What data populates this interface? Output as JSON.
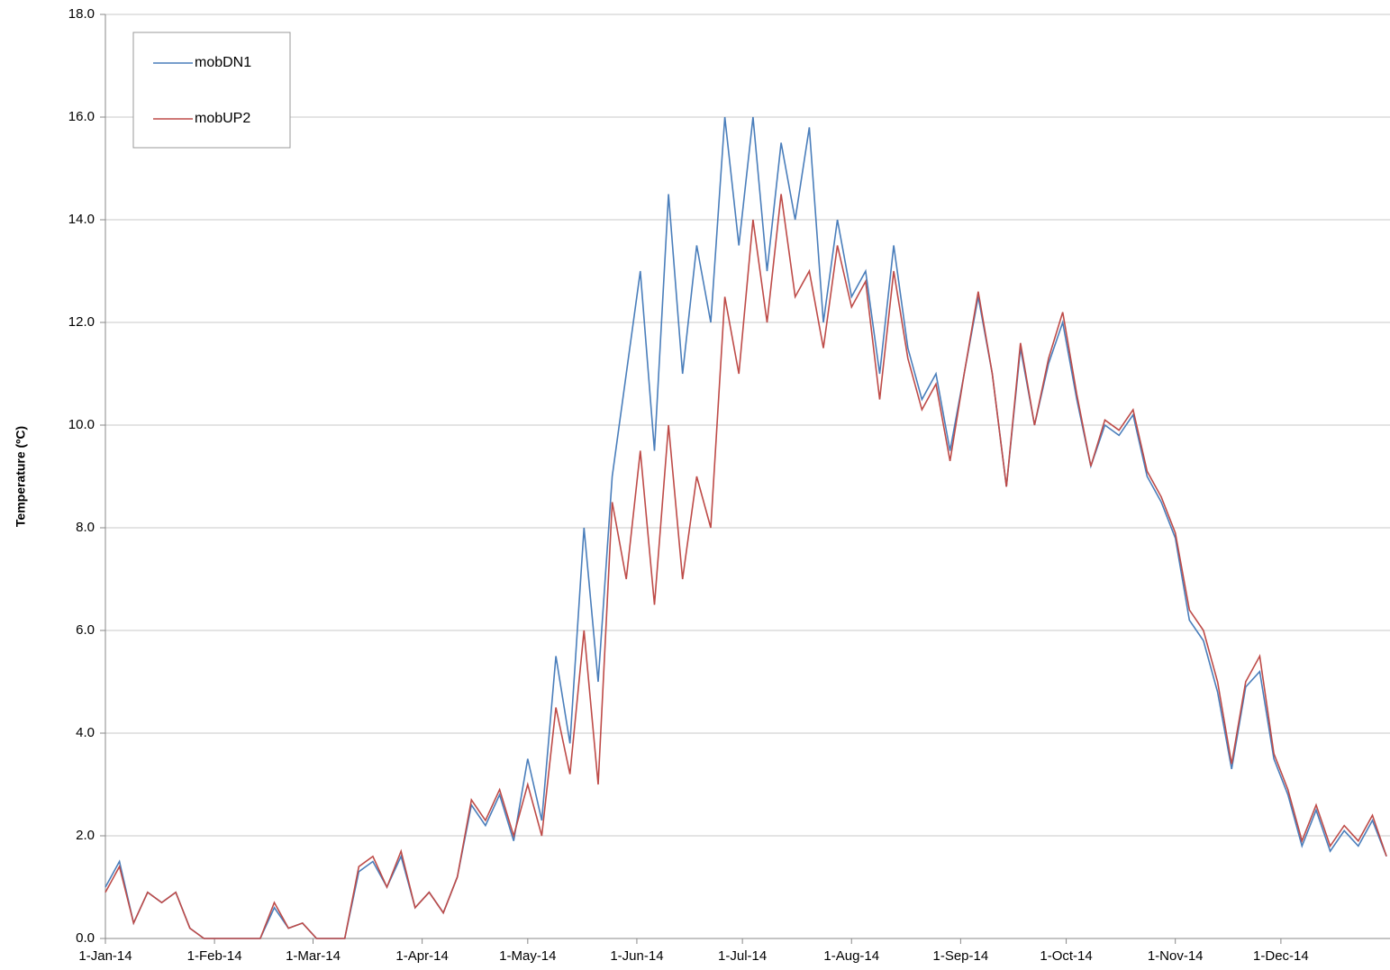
{
  "chart_data": {
    "type": "line",
    "y_label": "Temperature (ºC)",
    "x": [
      "2014-01-01",
      "2014-01-05",
      "2014-01-09",
      "2014-01-13",
      "2014-01-17",
      "2014-01-21",
      "2014-01-25",
      "2014-01-29",
      "2014-02-02",
      "2014-02-06",
      "2014-02-10",
      "2014-02-14",
      "2014-02-18",
      "2014-02-22",
      "2014-02-26",
      "2014-03-02",
      "2014-03-06",
      "2014-03-10",
      "2014-03-14",
      "2014-03-18",
      "2014-03-22",
      "2014-03-26",
      "2014-03-30",
      "2014-04-03",
      "2014-04-07",
      "2014-04-11",
      "2014-04-15",
      "2014-04-19",
      "2014-04-23",
      "2014-04-27",
      "2014-05-01",
      "2014-05-05",
      "2014-05-09",
      "2014-05-13",
      "2014-05-17",
      "2014-05-21",
      "2014-05-25",
      "2014-05-29",
      "2014-06-02",
      "2014-06-06",
      "2014-06-10",
      "2014-06-14",
      "2014-06-18",
      "2014-06-22",
      "2014-06-26",
      "2014-06-30",
      "2014-07-04",
      "2014-07-08",
      "2014-07-12",
      "2014-07-16",
      "2014-07-20",
      "2014-07-24",
      "2014-07-28",
      "2014-08-01",
      "2014-08-05",
      "2014-08-09",
      "2014-08-13",
      "2014-08-17",
      "2014-08-21",
      "2014-08-25",
      "2014-08-29",
      "2014-09-02",
      "2014-09-06",
      "2014-09-10",
      "2014-09-14",
      "2014-09-18",
      "2014-09-22",
      "2014-09-26",
      "2014-09-30",
      "2014-10-04",
      "2014-10-08",
      "2014-10-12",
      "2014-10-16",
      "2014-10-20",
      "2014-10-24",
      "2014-10-28",
      "2014-11-01",
      "2014-11-05",
      "2014-11-09",
      "2014-11-13",
      "2014-11-17",
      "2014-11-21",
      "2014-11-25",
      "2014-11-29",
      "2014-12-03",
      "2014-12-07",
      "2014-12-11",
      "2014-12-15",
      "2014-12-19",
      "2014-12-23",
      "2014-12-27",
      "2014-12-31"
    ],
    "series": [
      {
        "name": "mobDN1",
        "color": "#4a7ebb",
        "values": [
          1.0,
          1.5,
          0.3,
          0.9,
          0.7,
          0.9,
          0.2,
          0.0,
          0.0,
          0.0,
          0.0,
          0.0,
          0.6,
          0.2,
          0.3,
          0.0,
          0.0,
          0.0,
          1.3,
          1.5,
          1.0,
          1.6,
          0.6,
          0.9,
          0.5,
          1.2,
          2.6,
          2.2,
          2.8,
          1.9,
          3.5,
          2.3,
          5.5,
          3.8,
          8.0,
          5.0,
          9.0,
          11.0,
          13.0,
          9.5,
          14.5,
          11.0,
          13.5,
          12.0,
          16.0,
          13.5,
          16.0,
          13.0,
          15.5,
          14.0,
          15.8,
          12.0,
          14.0,
          12.5,
          13.0,
          11.0,
          13.5,
          11.5,
          10.5,
          11.0,
          9.5,
          11.0,
          12.5,
          11.0,
          8.8,
          11.5,
          10.0,
          11.2,
          12.0,
          10.5,
          9.2,
          10.0,
          9.8,
          10.2,
          9.0,
          8.5,
          7.8,
          6.2,
          5.8,
          4.8,
          3.3,
          4.9,
          5.2,
          3.5,
          2.8,
          1.8,
          2.5,
          1.7,
          2.1,
          1.8,
          2.3,
          1.6
        ]
      },
      {
        "name": "mobUP2",
        "color": "#be4b48",
        "values": [
          0.9,
          1.4,
          0.3,
          0.9,
          0.7,
          0.9,
          0.2,
          0.0,
          0.0,
          0.0,
          0.0,
          0.0,
          0.7,
          0.2,
          0.3,
          0.0,
          0.0,
          0.0,
          1.4,
          1.6,
          1.0,
          1.7,
          0.6,
          0.9,
          0.5,
          1.2,
          2.7,
          2.3,
          2.9,
          2.0,
          3.0,
          2.0,
          4.5,
          3.2,
          6.0,
          3.0,
          8.5,
          7.0,
          9.5,
          6.5,
          10.0,
          7.0,
          9.0,
          8.0,
          12.5,
          11.0,
          14.0,
          12.0,
          14.5,
          12.5,
          13.0,
          11.5,
          13.5,
          12.3,
          12.8,
          10.5,
          13.0,
          11.3,
          10.3,
          10.8,
          9.3,
          11.0,
          12.6,
          11.0,
          8.8,
          11.6,
          10.0,
          11.3,
          12.2,
          10.6,
          9.2,
          10.1,
          9.9,
          10.3,
          9.1,
          8.6,
          7.9,
          6.4,
          6.0,
          5.0,
          3.4,
          5.0,
          5.5,
          3.6,
          2.9,
          1.9,
          2.6,
          1.8,
          2.2,
          1.9,
          2.4,
          1.6
        ]
      }
    ],
    "xlim": [
      "2014-01-01",
      "2015-01-01"
    ],
    "xticks": [
      {
        "value": "2014-01-01",
        "label": "1-Jan-14"
      },
      {
        "value": "2014-02-01",
        "label": "1-Feb-14"
      },
      {
        "value": "2014-03-01",
        "label": "1-Mar-14"
      },
      {
        "value": "2014-04-01",
        "label": "1-Apr-14"
      },
      {
        "value": "2014-05-01",
        "label": "1-May-14"
      },
      {
        "value": "2014-06-01",
        "label": "1-Jun-14"
      },
      {
        "value": "2014-07-01",
        "label": "1-Jul-14"
      },
      {
        "value": "2014-08-01",
        "label": "1-Aug-14"
      },
      {
        "value": "2014-09-01",
        "label": "1-Sep-14"
      },
      {
        "value": "2014-10-01",
        "label": "1-Oct-14"
      },
      {
        "value": "2014-11-01",
        "label": "1-Nov-14"
      },
      {
        "value": "2014-12-01",
        "label": "1-Dec-14"
      }
    ],
    "ylim": [
      0,
      18
    ],
    "yticks": [
      {
        "value": 0,
        "label": "0.0"
      },
      {
        "value": 2,
        "label": "2.0"
      },
      {
        "value": 4,
        "label": "4.0"
      },
      {
        "value": 6,
        "label": "6.0"
      },
      {
        "value": 8,
        "label": "8.0"
      },
      {
        "value": 10,
        "label": "10.0"
      },
      {
        "value": 12,
        "label": "12.0"
      },
      {
        "value": 14,
        "label": "14.0"
      },
      {
        "value": 16,
        "label": "16.0"
      },
      {
        "value": 18,
        "label": "18.0"
      }
    ],
    "grid": true,
    "legend": "top-left"
  }
}
